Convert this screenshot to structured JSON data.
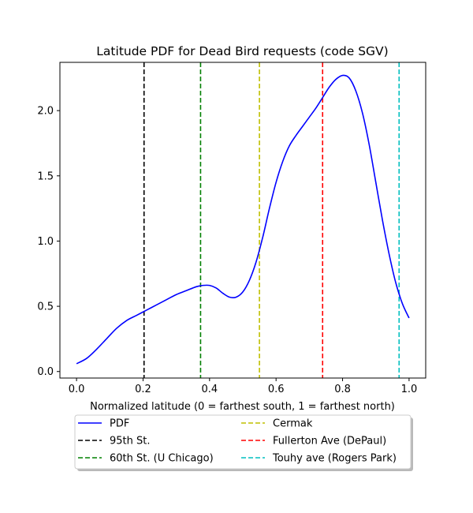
{
  "chart_data": {
    "type": "line",
    "title": "Latitude PDF for Dead Bird  requests (code SGV)",
    "xlabel": "Normalized latitude (0 = farthest south, 1 = farthest north)",
    "ylabel": "",
    "xlim": [
      -0.05,
      1.05
    ],
    "ylim": [
      -0.05,
      2.37
    ],
    "xticks": [
      0.0,
      0.2,
      0.4,
      0.6,
      0.8,
      1.0
    ],
    "xtick_labels": [
      "0.0",
      "0.2",
      "0.4",
      "0.6",
      "0.8",
      "1.0"
    ],
    "yticks": [
      0.0,
      0.5,
      1.0,
      1.5,
      2.0
    ],
    "ytick_labels": [
      "0.0",
      "0.5",
      "1.0",
      "1.5",
      "2.0"
    ],
    "grid": false,
    "legend_position": "below-center",
    "series": [
      {
        "name": "PDF",
        "color": "#0000ff",
        "style": "solid",
        "x": [
          0.0,
          0.03,
          0.06,
          0.09,
          0.12,
          0.15,
          0.18,
          0.21,
          0.24,
          0.27,
          0.3,
          0.33,
          0.36,
          0.38,
          0.4,
          0.42,
          0.44,
          0.46,
          0.48,
          0.5,
          0.52,
          0.54,
          0.56,
          0.58,
          0.6,
          0.62,
          0.64,
          0.66,
          0.68,
          0.7,
          0.72,
          0.74,
          0.76,
          0.78,
          0.8,
          0.82,
          0.84,
          0.86,
          0.88,
          0.9,
          0.92,
          0.94,
          0.96,
          0.98,
          1.0
        ],
        "y": [
          0.06,
          0.1,
          0.17,
          0.25,
          0.33,
          0.39,
          0.43,
          0.47,
          0.51,
          0.55,
          0.59,
          0.62,
          0.65,
          0.66,
          0.66,
          0.64,
          0.6,
          0.57,
          0.57,
          0.61,
          0.7,
          0.84,
          1.03,
          1.25,
          1.45,
          1.61,
          1.73,
          1.81,
          1.88,
          1.95,
          2.02,
          2.1,
          2.18,
          2.24,
          2.27,
          2.25,
          2.15,
          1.98,
          1.74,
          1.45,
          1.16,
          0.9,
          0.68,
          0.52,
          0.41
        ]
      }
    ],
    "vlines": [
      {
        "name": "95th St.",
        "x": 0.203,
        "color": "#000000"
      },
      {
        "name": "60th St. (U Chicago)",
        "x": 0.373,
        "color": "#008000"
      },
      {
        "name": "Cermak",
        "x": 0.55,
        "color": "#bfbf00"
      },
      {
        "name": "Fullerton Ave (DePaul)",
        "x": 0.74,
        "color": "#ff0000"
      },
      {
        "name": "Touhy ave (Rogers Park)",
        "x": 0.97,
        "color": "#00bfbf"
      }
    ]
  }
}
